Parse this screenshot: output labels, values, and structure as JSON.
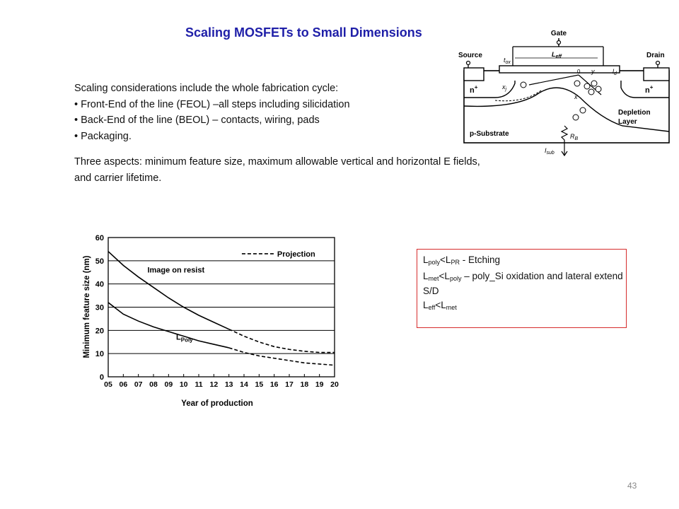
{
  "slide": {
    "title": "Scaling MOSFETs to Small Dimensions",
    "page_number": "43"
  },
  "intro": {
    "lead": "Scaling considerations include the whole fabrication cycle:",
    "bullets": [
      "• Front-End of the line (FEOL) –all steps including silicidation",
      "• Back-End of the line (BEOL) – contacts, wiring, pads",
      "• Packaging."
    ],
    "aspects_line1": "Three aspects: minimum feature size, maximum allowable vertical and horizontal E fields,",
    "aspects_line2": "and carrier lifetime."
  },
  "mos_diagram": {
    "labels": {
      "gate": "Gate",
      "source": "Source",
      "drain": "Drain",
      "n_plus_left": "n",
      "n_plus_right": "n",
      "plus": "+",
      "tox": "t",
      "tox_sub": "ox",
      "leff": "L",
      "leff_sub": "eff",
      "xj": "x",
      "xj_sub": "j",
      "zero": "0",
      "y": "y",
      "ld": "l",
      "ld_sub": "d",
      "x": "x",
      "depletion": "Depletion",
      "layer": "Layer",
      "substrate": "p-Substrate",
      "rb": "R",
      "rb_sub": "B",
      "isub": "I",
      "isub_sub": "sub"
    }
  },
  "chart_data": {
    "type": "line",
    "x": [
      "05",
      "06",
      "07",
      "08",
      "09",
      "10",
      "11",
      "12",
      "13",
      "14",
      "15",
      "16",
      "17",
      "18",
      "19",
      "20"
    ],
    "xlabel": "Year of production",
    "ylabel": "Minimum feature size (nm)",
    "ylim": [
      0,
      60
    ],
    "yticks": [
      "0",
      "10",
      "20",
      "30",
      "40",
      "50",
      "60"
    ],
    "grid": true,
    "legend": {
      "entry": "Projection",
      "placement": "top-right"
    },
    "series": [
      {
        "name": "Image on resist",
        "solid": [
          [
            5,
            54
          ],
          [
            6,
            48
          ],
          [
            7,
            43
          ],
          [
            8,
            38.5
          ],
          [
            9,
            34
          ],
          [
            10,
            30
          ],
          [
            11,
            26.5
          ],
          [
            12,
            23.5
          ],
          [
            13,
            20.5
          ]
        ],
        "dashed": [
          [
            13,
            20.5
          ],
          [
            14,
            17.5
          ],
          [
            15,
            15
          ],
          [
            16,
            13
          ],
          [
            17,
            11.8
          ],
          [
            18,
            11
          ],
          [
            19,
            10.5
          ],
          [
            20,
            10.5
          ]
        ]
      },
      {
        "name": "L",
        "name_sub": "Poly",
        "solid": [
          [
            5,
            32
          ],
          [
            6,
            27
          ],
          [
            7,
            24
          ],
          [
            8,
            21.5
          ],
          [
            9,
            19.5
          ],
          [
            10,
            17.5
          ],
          [
            11,
            15.5
          ],
          [
            12,
            14
          ],
          [
            13,
            12.5
          ]
        ],
        "dashed": [
          [
            13,
            12.5
          ],
          [
            14,
            10.5
          ],
          [
            15,
            9
          ],
          [
            16,
            8
          ],
          [
            17,
            7
          ],
          [
            18,
            6
          ],
          [
            19,
            5.5
          ],
          [
            20,
            5
          ]
        ]
      }
    ]
  },
  "notes": {
    "line1": {
      "a": "L",
      "a_sub": "poly",
      "rel": "<L",
      "b_sub": "PR",
      "rest": " - Etching"
    },
    "line2": {
      "a": "L",
      "a_sub": "met",
      "rel": "<L",
      "b_sub": "poly",
      "rest": " – poly_Si oxidation and lateral extend S/D"
    },
    "line3": {
      "a": "L",
      "a_sub": "eff",
      "rel": "<L",
      "b_sub": "met"
    }
  }
}
